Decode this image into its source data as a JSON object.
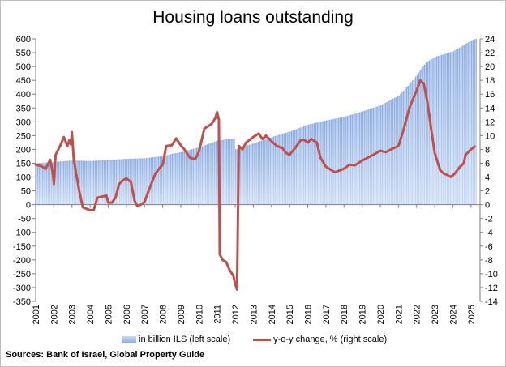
{
  "chart_data": {
    "type": "bar+line",
    "title": "Housing loans outstanding",
    "x_tick_labels": [
      "2001",
      "2002",
      "2003",
      "2004",
      "2005",
      "2006",
      "2007",
      "2008",
      "2009",
      "2010",
      "2011",
      "2012",
      "2013",
      "2014",
      "2015",
      "2016",
      "2017",
      "2018",
      "2019",
      "2020",
      "2021",
      "2022",
      "2023",
      "2024",
      "2025"
    ],
    "left_axis": {
      "ylim": [
        -350,
        600
      ],
      "step": 50
    },
    "right_axis": {
      "ylim": [
        -14,
        24
      ],
      "step": 2
    },
    "series": [
      {
        "name": "in billion ILS (left scale)",
        "kind": "bar",
        "axis": "left",
        "points": [
          [
            2001.0,
            150
          ],
          [
            2002.0,
            155
          ],
          [
            2003.0,
            160
          ],
          [
            2004.0,
            158
          ],
          [
            2005.0,
            162
          ],
          [
            2006.0,
            166
          ],
          [
            2007.0,
            168
          ],
          [
            2008.0,
            176
          ],
          [
            2008.5,
            184
          ],
          [
            2009.0,
            190
          ],
          [
            2010.0,
            208
          ],
          [
            2011.0,
            232
          ],
          [
            2011.95,
            240
          ],
          [
            2012.0,
            200
          ],
          [
            2013.0,
            222
          ],
          [
            2014.0,
            245
          ],
          [
            2015.0,
            265
          ],
          [
            2016.0,
            290
          ],
          [
            2017.0,
            305
          ],
          [
            2018.0,
            318
          ],
          [
            2019.0,
            338
          ],
          [
            2020.0,
            360
          ],
          [
            2021.0,
            395
          ],
          [
            2021.5,
            430
          ],
          [
            2022.0,
            470
          ],
          [
            2022.5,
            515
          ],
          [
            2023.0,
            535
          ],
          [
            2023.5,
            545
          ],
          [
            2024.0,
            555
          ],
          [
            2024.5,
            575
          ],
          [
            2025.0,
            595
          ],
          [
            2025.25,
            600
          ]
        ]
      },
      {
        "name": "y-o-y change, % (right scale)",
        "kind": "line",
        "axis": "right",
        "points": [
          [
            2001.0,
            5.8
          ],
          [
            2001.3,
            5.6
          ],
          [
            2001.55,
            5.2
          ],
          [
            2001.8,
            6.5
          ],
          [
            2001.95,
            4.5
          ],
          [
            2002.0,
            3.0
          ],
          [
            2002.1,
            7.2
          ],
          [
            2002.4,
            8.8
          ],
          [
            2002.55,
            9.8
          ],
          [
            2002.75,
            8.5
          ],
          [
            2002.85,
            9.3
          ],
          [
            2002.95,
            8.7
          ],
          [
            2003.0,
            10.5
          ],
          [
            2003.1,
            6.5
          ],
          [
            2003.4,
            2.0
          ],
          [
            2003.6,
            -0.4
          ],
          [
            2003.8,
            -0.6
          ],
          [
            2004.0,
            -0.8
          ],
          [
            2004.2,
            -0.8
          ],
          [
            2004.4,
            1.0
          ],
          [
            2004.7,
            1.2
          ],
          [
            2004.9,
            1.3
          ],
          [
            2005.0,
            0.3
          ],
          [
            2005.2,
            0.3
          ],
          [
            2005.4,
            1.0
          ],
          [
            2005.6,
            3.0
          ],
          [
            2005.8,
            3.5
          ],
          [
            2006.0,
            3.8
          ],
          [
            2006.25,
            3.3
          ],
          [
            2006.45,
            0.6
          ],
          [
            2006.6,
            -0.2
          ],
          [
            2006.8,
            0.0
          ],
          [
            2007.0,
            0.4
          ],
          [
            2007.3,
            2.5
          ],
          [
            2007.6,
            4.5
          ],
          [
            2007.9,
            5.5
          ],
          [
            2008.0,
            5.8
          ],
          [
            2008.2,
            8.5
          ],
          [
            2008.5,
            8.6
          ],
          [
            2008.75,
            9.6
          ],
          [
            2009.0,
            8.6
          ],
          [
            2009.2,
            8.0
          ],
          [
            2009.5,
            6.8
          ],
          [
            2009.8,
            6.6
          ],
          [
            2010.0,
            7.7
          ],
          [
            2010.3,
            11.0
          ],
          [
            2010.7,
            11.7
          ],
          [
            2010.9,
            12.5
          ],
          [
            2011.0,
            13.4
          ],
          [
            2011.1,
            12.3
          ],
          [
            2011.15,
            -7.2
          ],
          [
            2011.3,
            -8.0
          ],
          [
            2011.5,
            -8.3
          ],
          [
            2011.7,
            -9.5
          ],
          [
            2011.9,
            -10.3
          ],
          [
            2012.0,
            -11.5
          ],
          [
            2012.1,
            -12.3
          ],
          [
            2012.2,
            8.5
          ],
          [
            2012.4,
            8.0
          ],
          [
            2012.6,
            9.0
          ],
          [
            2013.0,
            9.8
          ],
          [
            2013.3,
            10.3
          ],
          [
            2013.5,
            9.5
          ],
          [
            2013.7,
            10.0
          ],
          [
            2014.0,
            9.2
          ],
          [
            2014.3,
            8.5
          ],
          [
            2014.6,
            8.2
          ],
          [
            2014.8,
            7.5
          ],
          [
            2015.0,
            7.2
          ],
          [
            2015.3,
            8.2
          ],
          [
            2015.6,
            9.3
          ],
          [
            2015.8,
            9.4
          ],
          [
            2016.0,
            9.0
          ],
          [
            2016.2,
            9.5
          ],
          [
            2016.5,
            9.0
          ],
          [
            2016.7,
            6.8
          ],
          [
            2017.0,
            5.5
          ],
          [
            2017.3,
            5.0
          ],
          [
            2017.5,
            4.7
          ],
          [
            2017.7,
            4.9
          ],
          [
            2018.0,
            5.2
          ],
          [
            2018.3,
            5.8
          ],
          [
            2018.6,
            5.7
          ],
          [
            2019.0,
            6.4
          ],
          [
            2019.3,
            6.8
          ],
          [
            2019.6,
            7.2
          ],
          [
            2020.0,
            7.8
          ],
          [
            2020.3,
            7.6
          ],
          [
            2020.6,
            8.0
          ],
          [
            2021.0,
            8.5
          ],
          [
            2021.3,
            11.0
          ],
          [
            2021.6,
            14.0
          ],
          [
            2022.0,
            16.5
          ],
          [
            2022.2,
            18.0
          ],
          [
            2022.4,
            17.5
          ],
          [
            2022.6,
            14.8
          ],
          [
            2022.8,
            11.0
          ],
          [
            2023.0,
            7.5
          ],
          [
            2023.3,
            5.0
          ],
          [
            2023.5,
            4.5
          ],
          [
            2023.7,
            4.3
          ],
          [
            2023.9,
            4.0
          ],
          [
            2024.1,
            4.5
          ],
          [
            2024.4,
            5.5
          ],
          [
            2024.6,
            6.0
          ],
          [
            2024.7,
            7.2
          ],
          [
            2025.0,
            8.0
          ],
          [
            2025.2,
            8.4
          ]
        ]
      }
    ],
    "legend_position": "bottom",
    "grid": false
  },
  "source_text": "Sources: Bank of Israel, Global Property Guide"
}
